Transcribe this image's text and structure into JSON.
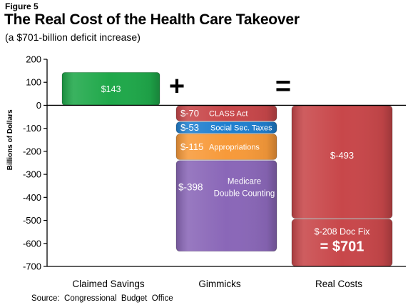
{
  "figure_label": "Figure 5",
  "title": "The Real Cost of the Health Care Takeover",
  "subtitle": "(a $701-billion deficit increase)",
  "source": "Source:  Congressional  Budget  Office",
  "operators": {
    "plus": "+",
    "equals": "="
  },
  "colors": {
    "green": "#1fa84a",
    "red": "#c8474a",
    "blue": "#1f7fcf",
    "orange": "#f79a3a",
    "purple": "#8a67b8"
  },
  "chart_data": {
    "type": "bar",
    "ylabel": "Billions of Dollars",
    "ylim": [
      -700,
      200
    ],
    "yticks": [
      200,
      100,
      0,
      -100,
      -200,
      -300,
      -400,
      -500,
      -600,
      -700
    ],
    "categories": [
      "Claimed Savings",
      "Gimmicks",
      "Real Costs"
    ],
    "segments": [
      {
        "category": "Claimed Savings",
        "value": 143,
        "start": 0,
        "color": "green",
        "value_label": "$143",
        "label": ""
      },
      {
        "category": "Gimmicks",
        "value": -70,
        "start": 0,
        "color": "red",
        "value_label": "$-70",
        "label": "CLASS Act"
      },
      {
        "category": "Gimmicks",
        "value": -53,
        "start": -70,
        "color": "blue",
        "value_label": "$-53",
        "label": "Social Sec. Taxes"
      },
      {
        "category": "Gimmicks",
        "value": -115,
        "start": -123,
        "color": "orange",
        "value_label": "$-115",
        "label": "Appropriations"
      },
      {
        "category": "Gimmicks",
        "value": -398,
        "start": -238,
        "color": "purple",
        "value_label": "$-398",
        "label": "Medicare\nDouble Counting"
      },
      {
        "category": "Real Costs",
        "value": -493,
        "start": 0,
        "color": "red",
        "value_label": "$-493",
        "label": ""
      },
      {
        "category": "Real Costs",
        "value": -208,
        "start": -493,
        "color": "red",
        "value_label": "$-208 Doc Fix",
        "label": "",
        "total_label": "= $701"
      }
    ]
  }
}
